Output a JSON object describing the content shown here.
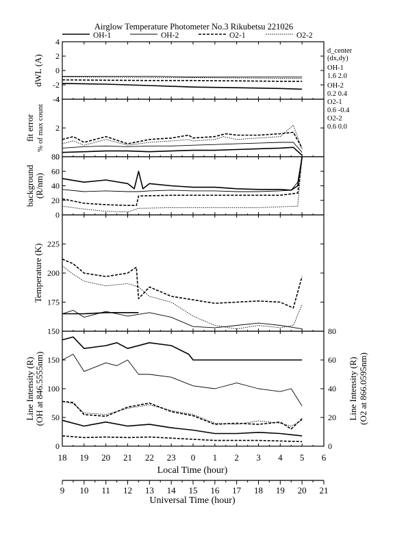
{
  "title": "Airglow Temperature Photometer No.3  Rikubetsu    221026",
  "legend": [
    {
      "name": "OH-1",
      "dash": "solid",
      "width": 1.6
    },
    {
      "name": "OH-2",
      "dash": "solid",
      "width": 0.9
    },
    {
      "name": "O2-1",
      "dash": "dashed",
      "width": 1.6
    },
    {
      "name": "O2-2",
      "dash": "dotted",
      "width": 0.9
    }
  ],
  "d_center": {
    "title": "d_center",
    "subtitle": "(dx,dy)",
    "entries": [
      {
        "name": "OH-1",
        "value": "1.6  2.0"
      },
      {
        "name": "OH-2",
        "value": "0.2  0.4"
      },
      {
        "name": "O2-1",
        "value": "0.6  -0.4"
      },
      {
        "name": "O2-2",
        "value": "0.6  0.0"
      }
    ]
  },
  "axes": {
    "lt_label": "Local Time (hour)",
    "lt_ticks": [
      "18",
      "19",
      "20",
      "21",
      "22",
      "23",
      "0",
      "1",
      "2",
      "3",
      "4",
      "5",
      "6"
    ],
    "ut_label": "Universal Time (hour)",
    "ut_ticks": [
      "9",
      "10",
      "11",
      "12",
      "13",
      "14",
      "15",
      "16",
      "17",
      "18",
      "19",
      "20",
      "21"
    ]
  },
  "chart_data": [
    {
      "type": "line",
      "panel": "dwl",
      "ylabel": "dWL (A)",
      "ylim": [
        -4,
        4
      ],
      "yticks": [
        -4,
        -2,
        0,
        2,
        4
      ],
      "x_unit": "hours since 18 LT",
      "series": [
        {
          "name": "OH-1",
          "x": [
            0,
            2,
            4,
            6,
            8,
            10,
            11
          ],
          "y": [
            -1.8,
            -1.9,
            -2.1,
            -2.3,
            -2.4,
            -2.5,
            -2.6
          ]
        },
        {
          "name": "OH-2",
          "x": [
            0,
            2,
            4,
            6,
            8,
            10,
            11
          ],
          "y": [
            -0.8,
            -0.8,
            -0.8,
            -0.9,
            -0.9,
            -0.9,
            -0.9
          ]
        },
        {
          "name": "O2-1",
          "x": [
            0,
            2,
            4,
            6,
            8,
            10,
            11
          ],
          "y": [
            -1.3,
            -1.35,
            -1.4,
            -1.4,
            -1.45,
            -1.5,
            -1.5
          ]
        },
        {
          "name": "O2-2",
          "x": [
            0,
            2,
            4,
            6,
            8,
            10,
            11
          ],
          "y": [
            -0.9,
            -0.95,
            -1.0,
            -1.0,
            -1.05,
            -1.1,
            -1.1
          ]
        }
      ]
    },
    {
      "type": "line",
      "panel": "fit",
      "ylabel": "fit error",
      "ylabel2": "% of max count",
      "ylim": [
        0,
        4
      ],
      "yticks": [
        0,
        2,
        4
      ],
      "series": [
        {
          "name": "OH-1",
          "x": [
            0,
            1,
            2,
            3,
            4,
            5,
            6,
            7,
            8,
            9,
            10,
            10.6,
            11
          ],
          "y": [
            0.3,
            0.35,
            0.4,
            0.4,
            0.35,
            0.4,
            0.45,
            0.45,
            0.5,
            0.55,
            0.6,
            0.65,
            0.1
          ]
        },
        {
          "name": "OH-2",
          "x": [
            0,
            1,
            2,
            3,
            4,
            5,
            6,
            7,
            8,
            9,
            10,
            10.6,
            11
          ],
          "y": [
            0.6,
            0.7,
            0.75,
            0.7,
            0.75,
            0.75,
            0.8,
            0.85,
            0.9,
            0.95,
            1.0,
            1.0,
            0.3
          ]
        },
        {
          "name": "O2-1",
          "x": [
            0,
            0.5,
            1,
            2,
            3,
            4,
            5,
            5.8,
            6,
            7,
            7.5,
            8,
            9,
            10,
            10.6,
            11
          ],
          "y": [
            1.2,
            1.4,
            1.0,
            1.4,
            0.9,
            1.2,
            1.3,
            1.5,
            1.3,
            1.4,
            1.6,
            1.5,
            1.5,
            1.6,
            1.7,
            0.6
          ]
        },
        {
          "name": "O2-2",
          "x": [
            0,
            0.5,
            1,
            2,
            3,
            4,
            5,
            5.8,
            6,
            7,
            7.4,
            8,
            9,
            10,
            10.6,
            11
          ],
          "y": [
            0.9,
            1.1,
            0.8,
            1.2,
            0.8,
            1.0,
            1.1,
            1.2,
            1.1,
            1.2,
            1.4,
            1.2,
            1.3,
            1.4,
            2.2,
            0.5
          ]
        }
      ]
    },
    {
      "type": "line",
      "panel": "background",
      "ylabel": "background",
      "ylabel2": "(R/nm)",
      "ylim": [
        0,
        80
      ],
      "yticks": [
        0,
        20,
        40,
        60,
        80
      ],
      "series": [
        {
          "name": "OH-1",
          "x": [
            0,
            1,
            2,
            3,
            3.3,
            3.5,
            3.7,
            4,
            5,
            6,
            7,
            8,
            9,
            10,
            10.5,
            10.8,
            11
          ],
          "y": [
            50,
            45,
            48,
            43,
            36,
            60,
            36,
            43,
            40,
            38,
            38,
            36,
            35,
            35,
            34,
            40,
            80
          ]
        },
        {
          "name": "OH-2",
          "x": [
            0,
            1,
            2,
            3,
            3.5,
            4,
            5,
            6,
            7,
            8,
            9,
            10,
            10.5,
            10.8,
            11
          ],
          "y": [
            35,
            32,
            33,
            32,
            32,
            33,
            34,
            33,
            33,
            32,
            32,
            33,
            34,
            45,
            80
          ]
        },
        {
          "name": "O2-1",
          "x": [
            0,
            1,
            2,
            3,
            3.4,
            3.5,
            5,
            7,
            9,
            10,
            10.8,
            11
          ],
          "y": [
            22,
            16,
            14,
            13,
            13,
            26,
            27,
            27,
            27,
            27,
            30,
            80
          ]
        },
        {
          "name": "O2-2",
          "x": [
            0,
            1,
            2,
            3,
            3.5,
            5,
            7,
            9,
            10.8,
            11
          ],
          "y": [
            12,
            8,
            5,
            4,
            9,
            10,
            10,
            10,
            12,
            80
          ]
        }
      ]
    },
    {
      "type": "line",
      "panel": "temperature",
      "ylabel": "Temperature (K)",
      "ylim": [
        150,
        250
      ],
      "yticks": [
        150,
        175,
        200,
        225
      ],
      "series": [
        {
          "name": "OH-1",
          "x": [
            0,
            1,
            2,
            3,
            3.5
          ],
          "y": [
            165,
            165,
            166,
            166,
            166
          ]
        },
        {
          "name": "OH-2",
          "x": [
            0,
            0.5,
            1,
            2,
            3,
            4,
            5,
            6,
            7,
            8,
            9,
            10,
            11
          ],
          "y": [
            165,
            168,
            162,
            167,
            163,
            166,
            162,
            154,
            153,
            155,
            157,
            155,
            152
          ]
        },
        {
          "name": "O2-1",
          "x": [
            0,
            0.5,
            1,
            2,
            3,
            3.4,
            3.5,
            4,
            5,
            6,
            7,
            8,
            9,
            10,
            10.6,
            11
          ],
          "y": [
            212,
            208,
            200,
            197,
            200,
            205,
            178,
            188,
            180,
            177,
            174,
            175,
            176,
            175,
            170,
            197
          ]
        },
        {
          "name": "O2-2",
          "x": [
            0,
            0.5,
            1,
            2,
            3,
            3.5,
            4,
            5,
            6,
            7,
            8,
            9,
            10,
            10.6,
            11
          ],
          "y": [
            206,
            199,
            193,
            189,
            191,
            188,
            180,
            175,
            163,
            155,
            152,
            155,
            153,
            155,
            173
          ]
        }
      ]
    },
    {
      "type": "line",
      "panel": "intensity",
      "ylabel": "Line Intensity (R)",
      "ylabel2": "(OH at 846.5555nm)",
      "ylim": [
        0,
        200
      ],
      "yticks": [
        0,
        50,
        100,
        150
      ],
      "y2label": "Line Intensity (R)",
      "y2label2": "(O2 at 866.0595nm)",
      "y2lim": [
        0,
        80
      ],
      "y2ticks": [
        0,
        20,
        40,
        60,
        80
      ],
      "series": [
        {
          "name": "OH-1",
          "x": [
            0,
            0.5,
            1,
            2,
            2.5,
            3,
            4,
            5,
            5.8,
            6,
            7,
            8,
            9,
            10,
            11
          ],
          "y": [
            185,
            190,
            170,
            175,
            180,
            170,
            180,
            175,
            160,
            150,
            150,
            150,
            150,
            150,
            150
          ]
        },
        {
          "name": "OH-2",
          "x": [
            0,
            0.5,
            1,
            2,
            2.5,
            3,
            3.5,
            4,
            5,
            6,
            7,
            8,
            9,
            10,
            10.5,
            11
          ],
          "y": [
            150,
            160,
            130,
            145,
            140,
            150,
            125,
            125,
            120,
            105,
            100,
            110,
            100,
            95,
            100,
            70
          ]
        },
        {
          "name": "O2-1",
          "x": [
            0,
            0.5,
            1,
            2,
            3,
            4,
            5,
            6,
            7,
            8,
            9,
            10,
            10.5,
            11
          ],
          "y": [
            78,
            76,
            55,
            52,
            68,
            75,
            60,
            53,
            38,
            40,
            38,
            42,
            30,
            48
          ]
        },
        {
          "name": "O2-2",
          "x": [
            0,
            0.5,
            1,
            2,
            3,
            4,
            5,
            6,
            7,
            8,
            9,
            10,
            10.5,
            11
          ],
          "y": [
            78,
            74,
            58,
            55,
            66,
            72,
            62,
            55,
            40,
            38,
            44,
            40,
            35,
            45
          ]
        },
        {
          "name": "OH-1 low",
          "x": [
            0,
            1,
            2,
            3,
            4,
            5,
            6,
            7,
            8,
            9,
            10,
            11
          ],
          "y": [
            45,
            35,
            42,
            35,
            38,
            32,
            28,
            22,
            22,
            24,
            22,
            18
          ]
        },
        {
          "name": "O2-1 low",
          "x": [
            0,
            1,
            2,
            3,
            4,
            5,
            6,
            7,
            8,
            9,
            10,
            11
          ],
          "y": [
            18,
            15,
            16,
            15,
            16,
            14,
            12,
            10,
            10,
            10,
            9,
            8
          ]
        }
      ]
    }
  ]
}
